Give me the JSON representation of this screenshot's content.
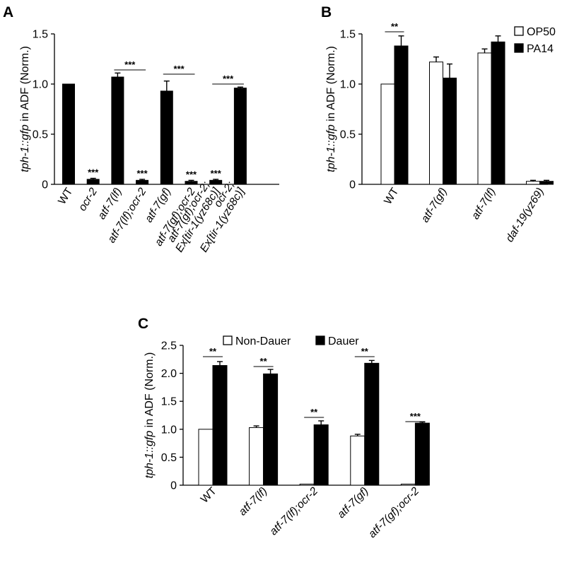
{
  "panel_labels": [
    "A",
    "B",
    "C"
  ],
  "chart_data": [
    {
      "type": "bar",
      "panel": "A",
      "ylabel_italic": "tph-1::gfp",
      "ylabel_rest": " in ADF (Norm.)",
      "yticks": [
        "0",
        "0.5",
        "1.0",
        "1.5"
      ],
      "ylim": [
        0,
        1.5
      ],
      "categories": [
        "WT",
        "ocr-2",
        "atf-7(lf)",
        "atf-7(lf);ocr-2",
        "atf-7(gf)",
        "atf-7(gf);ocr-2",
        "atf-7(gf);ocr-2; Ex[tir-1(yz68c)]",
        "ocr-2; Ex[tir-1(yz68c)]"
      ],
      "category_lines": [
        [
          "WT"
        ],
        [
          "ocr-2"
        ],
        [
          "atf-7(lf)"
        ],
        [
          "atf-7(lf);ocr-2"
        ],
        [
          "atf-7(gf)"
        ],
        [
          "atf-7(gf);ocr-2"
        ],
        [
          "atf-7(gf);ocr-2;",
          "Ex[tir-1(yz68c)]"
        ],
        [
          "ocr-2;",
          "Ex[tir-1(yz68c)]"
        ]
      ],
      "series": [
        {
          "color": "#000000",
          "values": [
            1.0,
            0.05,
            1.07,
            0.04,
            0.93,
            0.03,
            0.04,
            0.96
          ],
          "errors": [
            0,
            0.01,
            0.04,
            0.01,
            0.1,
            0.01,
            0.01,
            0.01
          ]
        }
      ],
      "star_labels": [
        {
          "index": 1,
          "text": "***"
        },
        {
          "index": 3,
          "text": "***"
        },
        {
          "index": 5,
          "text": "***"
        },
        {
          "index": 6,
          "text": "***"
        }
      ],
      "brackets": [
        {
          "from": 2,
          "to": 3,
          "text": "***"
        },
        {
          "from": 4,
          "to": 5,
          "text": "***"
        },
        {
          "from": 6,
          "to": 7,
          "text": "***"
        }
      ]
    },
    {
      "type": "bar",
      "panel": "B",
      "ylabel_italic": "tph-1::gfp",
      "ylabel_rest": " in ADF (Norm.)",
      "yticks": [
        "0",
        "0.5",
        "1.0",
        "1.5"
      ],
      "ylim": [
        0,
        1.5
      ],
      "categories": [
        "WT",
        "atf-7(gf)",
        "atf-7(lf)",
        "daf-19(yz69)"
      ],
      "series": [
        {
          "name": "OP50",
          "color": "#ffffff",
          "values": [
            1.0,
            1.22,
            1.31,
            0.03
          ],
          "errors": [
            0,
            0.05,
            0.04,
            0.01
          ]
        },
        {
          "name": "PA14",
          "color": "#000000",
          "values": [
            1.38,
            1.06,
            1.42,
            0.03
          ],
          "errors": [
            0.1,
            0.14,
            0.06,
            0.01
          ]
        }
      ],
      "legend_position": "top-right",
      "brackets": [
        {
          "category": 0,
          "text": "**"
        }
      ]
    },
    {
      "type": "bar",
      "panel": "C",
      "ylabel_italic": "tph-1::gfp",
      "ylabel_rest": " in ADF (Norm.)",
      "yticks": [
        "0",
        "0.5",
        "1.0",
        "1.5",
        "2.0",
        "2.5"
      ],
      "ylim": [
        0,
        2.5
      ],
      "categories": [
        "WT",
        "atf-7(lf)",
        "atf-7(lf);ocr-2",
        "atf-7(gf)",
        "atf-7(gf);ocr-2"
      ],
      "series": [
        {
          "name": "Non-Dauer",
          "color": "#ffffff",
          "values": [
            1.0,
            1.03,
            0.02,
            0.88,
            0.02
          ],
          "errors": [
            0,
            0.03,
            0,
            0.03,
            0
          ]
        },
        {
          "name": "Dauer",
          "color": "#000000",
          "values": [
            2.14,
            1.99,
            1.08,
            2.18,
            1.11
          ],
          "errors": [
            0.07,
            0.08,
            0.07,
            0.05,
            0.02
          ]
        }
      ],
      "legend_position": "top",
      "brackets": [
        {
          "category": 0,
          "text": "**"
        },
        {
          "category": 1,
          "text": "**"
        },
        {
          "category": 2,
          "text": "**"
        },
        {
          "category": 3,
          "text": "**"
        },
        {
          "category": 4,
          "text": "***"
        }
      ]
    }
  ]
}
